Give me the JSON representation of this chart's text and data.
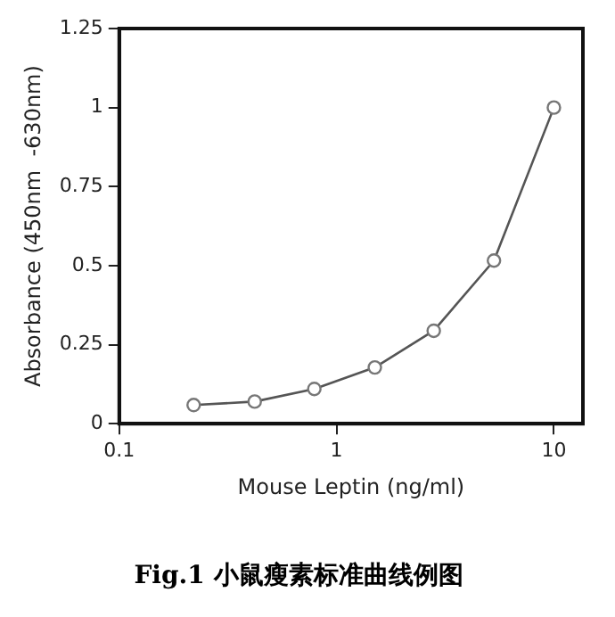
{
  "chart_data": {
    "type": "line",
    "title": "Fig.1 小鼠瘦素标准曲线例图",
    "xlabel": "Mouse Leptin (ng/ml)",
    "ylabel": "Absorbance (450nm  -630nm)",
    "x": [
      0.22,
      0.42,
      0.79,
      1.5,
      2.8,
      5.3,
      10
    ],
    "series": [
      {
        "color": "#555555",
        "values": [
          0.059,
          0.07,
          0.11,
          0.178,
          0.294,
          0.516,
          1.0
        ]
      }
    ],
    "log": "x",
    "xlim": [
      0.1,
      13.6
    ],
    "xticks": [
      0.1,
      1,
      10
    ],
    "ylim": [
      0,
      1.25
    ],
    "yticks": [
      0,
      0.25,
      0.5,
      0.75,
      1,
      1.25
    ],
    "grid": false,
    "legend": false,
    "marker": "circle",
    "line_style": "solid"
  }
}
